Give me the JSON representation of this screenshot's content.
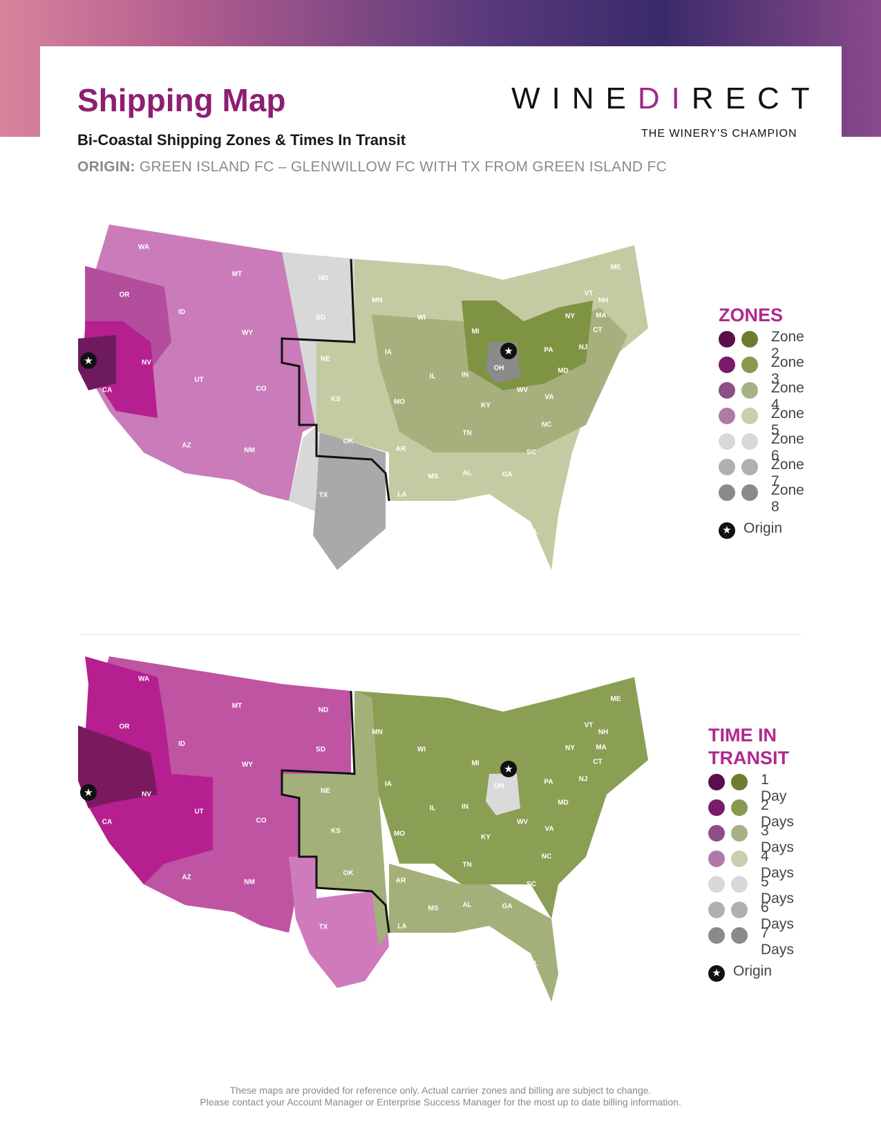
{
  "header": {
    "title": "Shipping Map",
    "subtitle": "Bi-Coastal Shipping Zones & Times In Transit",
    "origin_label": "ORIGIN:",
    "origin_text": "GREEN ISLAND FC – GLENWILLOW FC WITH TX FROM GREEN ISLAND FC"
  },
  "logo": {
    "text_left": "WINE",
    "text_mid": "DI",
    "text_right": "RECT",
    "tagline": "THE WINERY'S CHAMPION"
  },
  "zones_legend": {
    "title": "ZONES",
    "items": [
      {
        "label": "Zone 2",
        "west": "#5a0f4a",
        "east": "#6b7d2e"
      },
      {
        "label": "Zone 3",
        "west": "#7a1a6a",
        "east": "#889a50"
      },
      {
        "label": "Zone 4",
        "west": "#8f4f86",
        "east": "#a5b283"
      },
      {
        "label": "Zone 5",
        "west": "#b07aa8",
        "east": "#c9cfac"
      },
      {
        "label": "Zone 6",
        "west": "#d8d8d8",
        "east": "#d8d8d8"
      },
      {
        "label": "Zone 7",
        "west": "#b0b0b0",
        "east": "#b0b0b0"
      },
      {
        "label": "Zone 8",
        "west": "#8a8a8a",
        "east": "#8a8a8a"
      }
    ],
    "origin_label": "Origin"
  },
  "transit_legend": {
    "title_line1": "TIME IN",
    "title_line2": "TRANSIT",
    "items": [
      {
        "label": "1 Day",
        "west": "#5a0f4a",
        "east": "#6b7d2e"
      },
      {
        "label": "2 Days",
        "west": "#7a1a6a",
        "east": "#889a50"
      },
      {
        "label": "3 Days",
        "west": "#8f4f86",
        "east": "#a5b283"
      },
      {
        "label": "4 Days",
        "west": "#b07aa8",
        "east": "#c9cfac"
      },
      {
        "label": "5 Days",
        "west": "#d8d8d8",
        "east": "#d8d8d8"
      },
      {
        "label": "6 Days",
        "west": "#b0b0b0",
        "east": "#b0b0b0"
      },
      {
        "label": "7 Days",
        "west": "#8a8a8a",
        "east": "#8a8a8a"
      }
    ],
    "origin_label": "Origin"
  },
  "map_zones": {
    "states": {
      "WA": "WA",
      "OR": "OR",
      "CA": "CA",
      "NV": "NV",
      "ID": "ID",
      "MT": "MT",
      "WY": "WY",
      "UT": "UT",
      "AZ": "AZ",
      "CO": "CO",
      "NM": "NM",
      "ND": "ND",
      "SD": "SD",
      "NE": "NE",
      "KS": "KS",
      "OK": "OK",
      "TX": "TX",
      "MN": "MN",
      "IA": "IA",
      "MO": "MO",
      "AR": "AR",
      "LA": "LA",
      "WI": "WI",
      "IL": "IL",
      "MI": "MI",
      "IN": "IN",
      "OH": "OH",
      "KY": "KY",
      "TN": "TN",
      "MS": "MS",
      "AL": "AL",
      "GA": "GA",
      "FL": "FL",
      "SC": "SC",
      "NC": "NC",
      "VA": "VA",
      "WV": "WV",
      "PA": "PA",
      "NY": "NY",
      "MD": "MD",
      "NJ": "NJ",
      "CT": "CT",
      "MA": "MA",
      "VT": "VT",
      "NH": "NH",
      "ME": "ME"
    }
  },
  "disclaimer": {
    "line1": "These maps are provided for reference only. Actual carrier zones and billing are subject to change.",
    "line2": "Please contact your Account Manager or Enterprise Success Manager for the most up to date billing information."
  }
}
